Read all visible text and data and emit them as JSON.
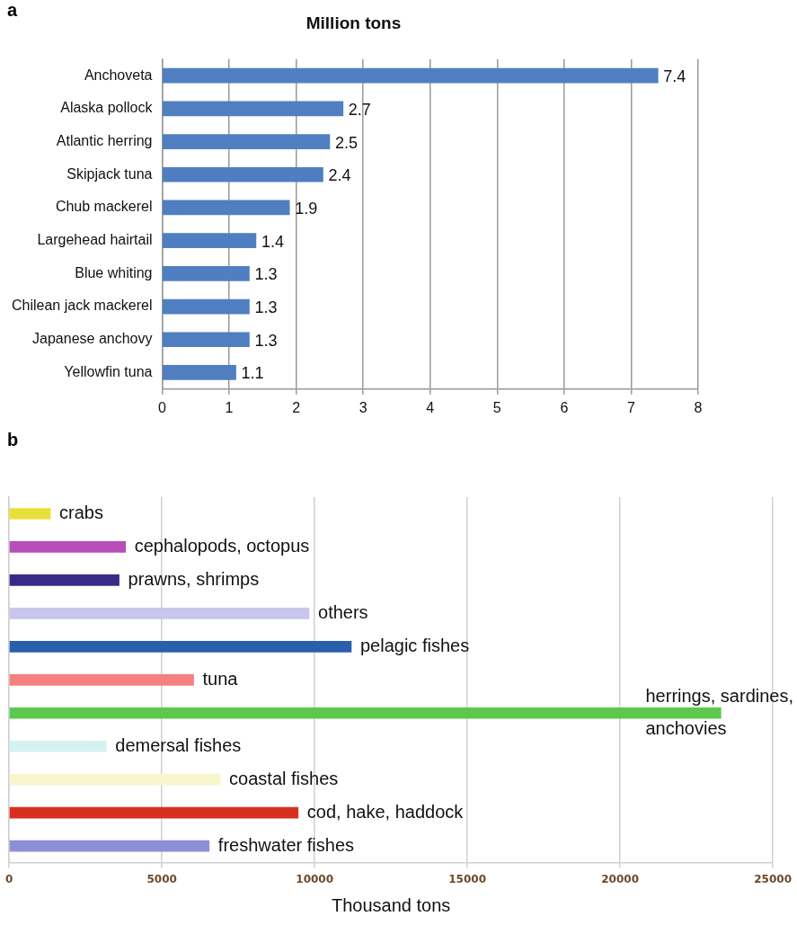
{
  "chart_data": [
    {
      "type": "bar",
      "orientation": "horizontal",
      "title": "Million tons",
      "annotations": [
        "a"
      ],
      "categories": [
        "Anchoveta",
        "Alaska pollock",
        "Atlantic herring",
        "Skipjack tuna",
        "Chub mackerel",
        "Largehead hairtail",
        "Blue whiting",
        "Chilean jack mackerel",
        "Japanese anchovy",
        "Yellowfin tuna"
      ],
      "values": [
        7.4,
        2.7,
        2.5,
        2.4,
        1.9,
        1.4,
        1.3,
        1.3,
        1.3,
        1.1
      ],
      "color": "#4f7fc0",
      "data_labels": true,
      "xlim": [
        0,
        8
      ],
      "xticks": [
        0,
        1,
        2,
        3,
        4,
        5,
        6,
        7,
        8
      ],
      "grid": "x",
      "legend": false
    },
    {
      "type": "bar",
      "orientation": "horizontal",
      "xlabel": "Thousand tons",
      "annotations": [
        "b"
      ],
      "categories": [
        "crabs",
        "cephalopods, octopus",
        "prawns, shrimps",
        "others",
        "pelagic fishes",
        "tuna",
        "herrings, sardines, anchovies",
        "demersal fishes",
        "coastal fishes",
        "cod, hake, haddock",
        "freshwater fishes"
      ],
      "values": [
        1350,
        3810,
        3600,
        9820,
        11200,
        6040,
        23300,
        3180,
        6910,
        9460,
        6550
      ],
      "colors": [
        "#e8e03a",
        "#b84fb8",
        "#3a2a88",
        "#c8c6ea",
        "#2a5fae",
        "#f58080",
        "#5cc84e",
        "#d4f2f2",
        "#f8f6cc",
        "#d83020",
        "#8e8ed8"
      ],
      "xlim": [
        0,
        25000
      ],
      "xticks": [
        0,
        5000,
        10000,
        15000,
        20000,
        25000
      ],
      "grid": "x",
      "legend": false
    }
  ]
}
